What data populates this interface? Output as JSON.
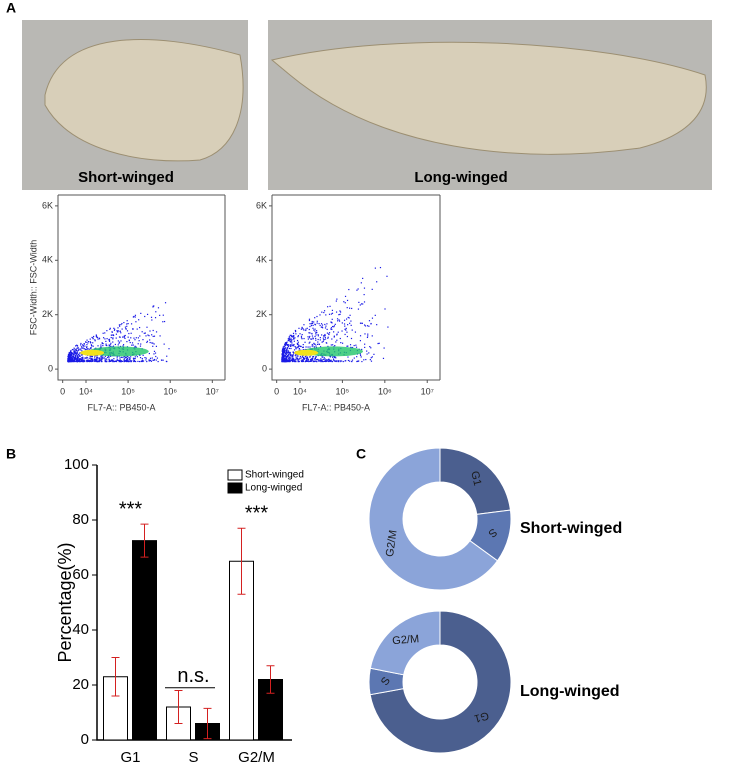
{
  "panel_labels": [
    "A",
    "B",
    "C"
  ],
  "photos": [
    {
      "label": "Short-winged"
    },
    {
      "label": "Long-winged"
    }
  ],
  "chart_data": [
    {
      "type": "scatter",
      "xlabel": "FL7-A:: PB450-A",
      "ylabel": "FSC-Width:: FSC-Width",
      "xlim": [
        -2000,
        20000000
      ],
      "ylim": [
        -400,
        6400
      ],
      "xticks": [
        0,
        {
          "value": 10000,
          "label": "10⁴"
        },
        {
          "value": 100000,
          "label": "10⁵"
        },
        {
          "value": 1000000,
          "label": "10⁶"
        },
        {
          "value": 10000000,
          "label": "10⁷"
        }
      ],
      "yticks": [
        0,
        {
          "value": 2000,
          "label": "2K"
        },
        {
          "value": 4000,
          "label": "4K"
        },
        {
          "value": 6000,
          "label": "6K"
        }
      ]
    },
    {
      "type": "scatter",
      "xlabel": "FL7-A:: PB450-A",
      "xlim": [
        -2000,
        20000000
      ],
      "ylim": [
        -400,
        6400
      ],
      "xticks": [
        0,
        {
          "value": 10000,
          "label": "10⁴"
        },
        {
          "value": 100000,
          "label": "10⁵"
        },
        {
          "value": 1000000,
          "label": "10⁶"
        },
        {
          "value": 10000000,
          "label": "10⁷"
        }
      ],
      "yticks": [
        0,
        {
          "value": 2000,
          "label": "2K"
        },
        {
          "value": 4000,
          "label": "4K"
        },
        {
          "value": 6000,
          "label": "6K"
        }
      ]
    },
    {
      "type": "bar",
      "ylabel": "Percentage(%)",
      "categories": [
        "G1",
        "S",
        "G2/M"
      ],
      "series": [
        {
          "name": "Short-winged",
          "color": "#ffffff",
          "values": [
            23,
            12,
            65
          ],
          "errors": [
            7,
            6,
            12
          ]
        },
        {
          "name": "Long-winged",
          "color": "#000000",
          "values": [
            72.5,
            6,
            22
          ],
          "errors": [
            6,
            5.5,
            5
          ]
        }
      ],
      "ylim": [
        0,
        100
      ],
      "yticks": [
        0,
        20,
        40,
        60,
        80,
        100
      ],
      "annotations": [
        "***",
        "n.s.",
        "***"
      ],
      "legend": "upper right"
    },
    {
      "type": "pie",
      "title": "Short-winged",
      "categories": [
        "G1",
        "S",
        "G2/M"
      ],
      "values": [
        23,
        12,
        65
      ],
      "colors": [
        "#4b5f8f",
        "#5c77b2",
        "#8ba4d9"
      ],
      "hole": true
    },
    {
      "type": "pie",
      "title": "Long-winged",
      "categories": [
        "G1",
        "S",
        "G2/M"
      ],
      "values": [
        72.5,
        6,
        22
      ],
      "colors": [
        "#4b5f8f",
        "#5c77b2",
        "#8ba4d9"
      ],
      "hole": true
    }
  ]
}
